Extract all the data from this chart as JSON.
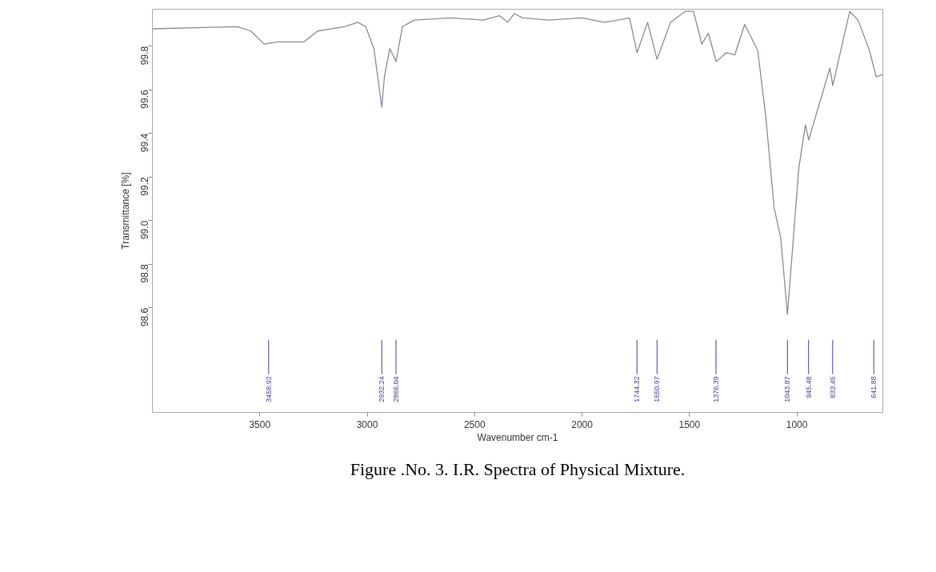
{
  "chart_data": {
    "type": "line",
    "xlabel": "Wavenumber cm-1",
    "ylabel": "Transmittance [%]",
    "xlim": [
      4000,
      600
    ],
    "ylim": [
      98.12,
      99.97
    ],
    "xticks": [
      3500,
      3000,
      2500,
      2000,
      1500,
      1000
    ],
    "yticks": [
      98.6,
      98.8,
      {
        "value": 99,
        "label": "99.0"
      },
      99.2,
      99.4,
      99.6,
      99.8
    ],
    "x": [
      4000,
      3604,
      3542,
      3480,
      3417,
      3355,
      3293,
      3231,
      3169,
      3106,
      3044,
      3007,
      2969,
      2932,
      2920,
      2895,
      2866,
      2836,
      2782,
      2613,
      2460,
      2384,
      2346,
      2315,
      2277,
      2154,
      2001,
      1894,
      1779,
      1744,
      1695,
      1651,
      1588,
      1519,
      1481,
      1443,
      1412,
      1376,
      1328,
      1289,
      1243,
      1182,
      1144,
      1106,
      1075,
      1044,
      991,
      960,
      945,
      846,
      833,
      754,
      715,
      662,
      631,
      600
    ],
    "series": [
      {
        "color": "#8a8a9a",
        "values": [
          99.88,
          99.89,
          99.87,
          99.81,
          99.82,
          99.82,
          99.82,
          99.87,
          99.88,
          99.89,
          99.91,
          99.89,
          99.79,
          99.52,
          99.66,
          99.79,
          99.73,
          99.89,
          99.92,
          99.93,
          99.92,
          99.94,
          99.91,
          99.95,
          99.93,
          99.92,
          99.93,
          99.91,
          99.93,
          99.77,
          99.91,
          99.74,
          99.91,
          99.96,
          99.96,
          99.81,
          99.86,
          99.73,
          99.77,
          99.76,
          99.9,
          99.78,
          99.47,
          99.06,
          98.92,
          98.57,
          99.24,
          99.44,
          99.37,
          99.7,
          99.62,
          99.96,
          99.92,
          99.78,
          99.66,
          99.67
        ]
      }
    ],
    "ref_lines": [
      {
        "axis": "x",
        "value": 3458.92,
        "label": "3458.92",
        "color": "#4040a0"
      },
      {
        "axis": "x",
        "value": 2932.24,
        "label": "2932.24",
        "color": "#4040a0"
      },
      {
        "axis": "x",
        "value": 2866.04,
        "label": "2866.04",
        "color": "#4040a0"
      },
      {
        "axis": "x",
        "value": 1744.32,
        "label": "1744.32",
        "color": "#4040a0"
      },
      {
        "axis": "x",
        "value": 1650.97,
        "label": "1650.97",
        "color": "#4040a0"
      },
      {
        "axis": "x",
        "value": 1376.39,
        "label": "1376.39",
        "color": "#4040a0"
      },
      {
        "axis": "x",
        "value": 1043.87,
        "label": "1043.87",
        "color": "#4040a0"
      },
      {
        "axis": "x",
        "value": 945.48,
        "label": "945.48",
        "color": "#4040a0"
      },
      {
        "axis": "x",
        "value": 833.45,
        "label": "833.45",
        "color": "#4040a0"
      },
      {
        "axis": "x",
        "value": 641.88,
        "label": "641.88",
        "color": "#4040a0"
      }
    ],
    "annotations": [
      "Figure .No. 3. I.R. Spectra of Physical Mixture."
    ]
  }
}
